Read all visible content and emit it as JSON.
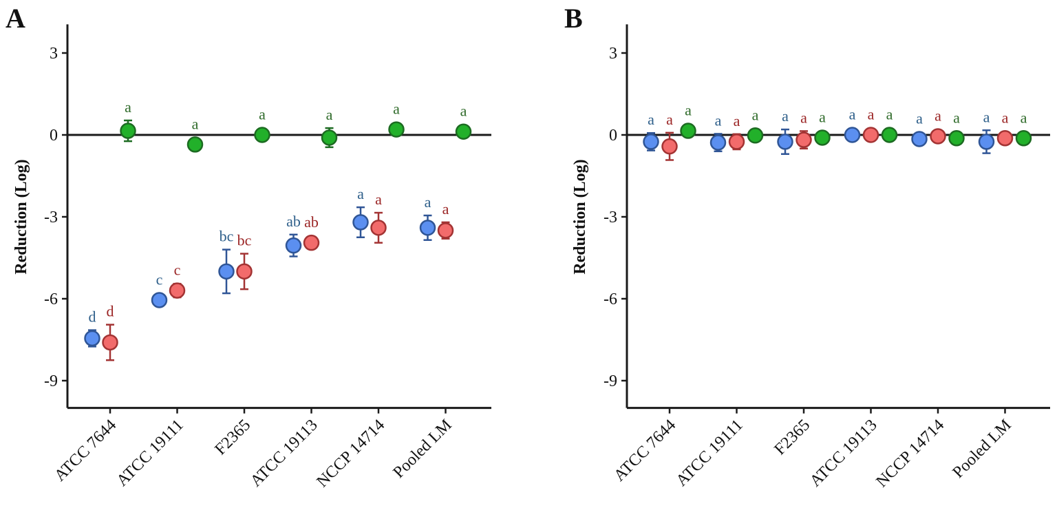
{
  "colors": {
    "blue_fill": "#5b8ff0",
    "blue_stroke": "#2f5596",
    "blue_text": "#2e5f8a",
    "red_fill": "#f26b6b",
    "red_stroke": "#a33333",
    "red_text": "#9b2525",
    "green_fill": "#22b02a",
    "green_stroke": "#1c6b21",
    "green_text": "#2f6b2a",
    "axis": "#1a1a1a"
  },
  "chart_data": [
    {
      "panel": "A",
      "type": "scatter",
      "ylabel": "Reduction (Log)",
      "xlabel": "",
      "ylim": [
        -10,
        4
      ],
      "yticks": [
        3,
        0,
        -3,
        -6,
        -9
      ],
      "ytick_labels": [
        "3",
        "0",
        "-3",
        "-6",
        "-9"
      ],
      "zero_line": true,
      "categories": [
        "ATCC 7644",
        "ATCC 19111",
        "F2365",
        "ATCC 19113",
        "NCCP 14714",
        "Pooled LM"
      ],
      "series": [
        {
          "name": "blue",
          "color": "blue",
          "offset": -1,
          "values": [
            -7.45,
            -6.05,
            -5.0,
            -4.05,
            -3.2,
            -3.4
          ],
          "errors": [
            0.3,
            0.15,
            0.8,
            0.4,
            0.55,
            0.45
          ],
          "letters": [
            "d",
            "c",
            "bc",
            "ab",
            "a",
            "a"
          ]
        },
        {
          "name": "red",
          "color": "red",
          "offset": 0,
          "values": [
            -7.6,
            -5.7,
            -5.0,
            -3.95,
            -3.4,
            -3.5
          ],
          "errors": [
            0.65,
            0.25,
            0.65,
            0.1,
            0.55,
            0.3
          ],
          "letters": [
            "d",
            "c",
            "bc",
            "ab",
            "a",
            "a"
          ]
        },
        {
          "name": "green",
          "color": "green",
          "offset": 1,
          "values": [
            0.15,
            -0.35,
            0.0,
            -0.1,
            0.2,
            0.12
          ],
          "errors": [
            0.38,
            0.0,
            0.0,
            0.35,
            0.0,
            0.0
          ],
          "letters": [
            "a",
            "a",
            "a",
            "a",
            "a",
            "a"
          ],
          "present": [
            true,
            true,
            true,
            true,
            true,
            true
          ]
        }
      ]
    },
    {
      "panel": "B",
      "type": "scatter",
      "ylabel": "Reduction (Log)",
      "xlabel": "",
      "ylim": [
        -10,
        4
      ],
      "yticks": [
        3,
        0,
        -3,
        -6,
        -9
      ],
      "ytick_labels": [
        "3",
        "0",
        "-3",
        "-6",
        "-9"
      ],
      "zero_line": true,
      "categories": [
        "ATCC 7644",
        "ATCC 19111",
        "F2365",
        "ATCC 19113",
        "NCCP 14714",
        "Pooled LM"
      ],
      "series": [
        {
          "name": "blue",
          "color": "blue",
          "offset": -1,
          "values": [
            -0.25,
            -0.28,
            -0.25,
            0.0,
            -0.15,
            -0.25
          ],
          "errors": [
            0.32,
            0.32,
            0.45,
            0.0,
            0.0,
            0.42
          ],
          "letters": [
            "a",
            "a",
            "a",
            "a",
            "a",
            "a"
          ]
        },
        {
          "name": "red",
          "color": "red",
          "offset": 0,
          "values": [
            -0.42,
            -0.25,
            -0.18,
            0.0,
            -0.05,
            -0.12
          ],
          "errors": [
            0.5,
            0.28,
            0.32,
            0.0,
            0.0,
            0.0
          ],
          "letters": [
            "a",
            "a",
            "a",
            "a",
            "a",
            "a"
          ]
        },
        {
          "name": "green",
          "color": "green",
          "offset": 1,
          "values": [
            0.15,
            -0.02,
            -0.1,
            0.0,
            -0.12,
            -0.12
          ],
          "errors": [
            0.0,
            0.0,
            0.0,
            0.0,
            0.0,
            0.0
          ],
          "letters": [
            "a",
            "a",
            "a",
            "a",
            "a",
            "a"
          ]
        }
      ]
    }
  ]
}
